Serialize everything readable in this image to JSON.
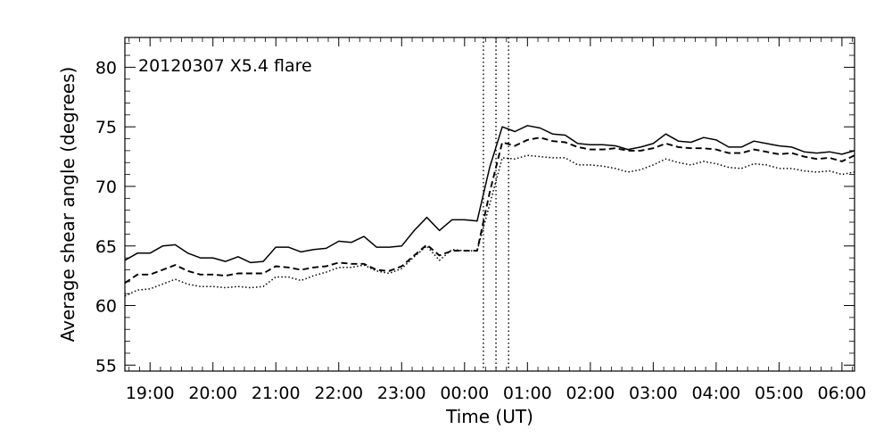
{
  "chart_data": {
    "type": "line",
    "annotation": "20120307 X5.4 flare",
    "xlabel": "Time (UT)",
    "ylabel": "Average shear angle (degrees)",
    "x_tick_labels": [
      "19:00",
      "20:00",
      "21:00",
      "22:00",
      "23:00",
      "00:00",
      "01:00",
      "02:00",
      "03:00",
      "04:00",
      "05:00",
      "06:00"
    ],
    "x_tick_values": [
      19,
      20,
      21,
      22,
      23,
      24,
      25,
      26,
      27,
      28,
      29,
      30
    ],
    "y_tick_labels": [
      "55",
      "60",
      "65",
      "70",
      "75",
      "80"
    ],
    "y_tick_values": [
      55,
      60,
      65,
      70,
      75,
      80
    ],
    "xlim": [
      18.6,
      30.2
    ],
    "ylim": [
      54.5,
      82.5
    ],
    "x_unit": "hours UT (values above 24 fall on 8 March)",
    "grid": false,
    "vertical_markers": [
      24.3,
      24.5,
      24.7
    ],
    "series": [
      {
        "style": "solid",
        "x": [
          18.6,
          18.8,
          19.0,
          19.2,
          19.4,
          19.6,
          19.8,
          20.0,
          20.2,
          20.4,
          20.6,
          20.8,
          21.0,
          21.2,
          21.4,
          21.6,
          21.8,
          22.0,
          22.2,
          22.4,
          22.6,
          22.8,
          23.0,
          23.2,
          23.4,
          23.6,
          23.8,
          24.0,
          24.2,
          24.4,
          24.6,
          24.8,
          25.0,
          25.2,
          25.4,
          25.6,
          25.8,
          26.0,
          26.2,
          26.4,
          26.6,
          26.8,
          27.0,
          27.2,
          27.4,
          27.6,
          27.8,
          28.0,
          28.2,
          28.4,
          28.6,
          28.8,
          29.0,
          29.2,
          29.4,
          29.6,
          29.8,
          30.0,
          30.2
        ],
        "y": [
          63.8,
          64.4,
          64.4,
          65.0,
          65.1,
          64.4,
          64.0,
          64.0,
          63.7,
          64.1,
          63.6,
          63.7,
          64.9,
          64.9,
          64.5,
          64.7,
          64.8,
          65.4,
          65.3,
          65.8,
          64.9,
          64.9,
          65.0,
          66.3,
          67.4,
          66.3,
          67.2,
          67.2,
          67.1,
          71.6,
          75.0,
          74.6,
          75.1,
          74.9,
          74.4,
          74.3,
          73.6,
          73.5,
          73.5,
          73.4,
          73.1,
          73.3,
          73.6,
          74.4,
          73.8,
          73.7,
          74.1,
          73.9,
          73.3,
          73.3,
          73.8,
          73.6,
          73.4,
          73.3,
          72.9,
          72.8,
          72.9,
          72.7,
          73.0
        ]
      },
      {
        "style": "dashed",
        "x": [
          18.6,
          18.8,
          19.0,
          19.2,
          19.4,
          19.6,
          19.8,
          20.0,
          20.2,
          20.4,
          20.6,
          20.8,
          21.0,
          21.2,
          21.4,
          21.6,
          21.8,
          22.0,
          22.2,
          22.4,
          22.6,
          22.8,
          23.0,
          23.2,
          23.4,
          23.6,
          23.8,
          24.0,
          24.2,
          24.4,
          24.6,
          24.8,
          25.0,
          25.2,
          25.4,
          25.6,
          25.8,
          26.0,
          26.2,
          26.4,
          26.6,
          26.8,
          27.0,
          27.2,
          27.4,
          27.6,
          27.8,
          28.0,
          28.2,
          28.4,
          28.6,
          28.8,
          29.0,
          29.2,
          29.4,
          29.6,
          29.8,
          30.0,
          30.2
        ],
        "y": [
          61.9,
          62.6,
          62.6,
          63.0,
          63.4,
          62.9,
          62.6,
          62.6,
          62.5,
          62.7,
          62.7,
          62.7,
          63.3,
          63.2,
          63.0,
          63.2,
          63.3,
          63.6,
          63.5,
          63.5,
          63.0,
          62.9,
          63.3,
          64.2,
          65.1,
          64.2,
          64.6,
          64.6,
          64.6,
          69.5,
          73.7,
          73.4,
          73.9,
          74.1,
          73.8,
          73.7,
          73.3,
          73.1,
          73.1,
          73.2,
          73.0,
          73.0,
          73.2,
          73.6,
          73.3,
          73.2,
          73.2,
          73.1,
          72.8,
          72.8,
          73.1,
          72.9,
          72.7,
          72.8,
          72.5,
          72.3,
          72.4,
          72.1,
          72.6
        ]
      },
      {
        "style": "dotted",
        "x": [
          18.6,
          18.8,
          19.0,
          19.2,
          19.4,
          19.6,
          19.8,
          20.0,
          20.2,
          20.4,
          20.6,
          20.8,
          21.0,
          21.2,
          21.4,
          21.6,
          21.8,
          22.0,
          22.2,
          22.4,
          22.6,
          22.8,
          23.0,
          23.2,
          23.4,
          23.6,
          23.8,
          24.0,
          24.2,
          24.4,
          24.6,
          24.8,
          25.0,
          25.2,
          25.4,
          25.6,
          25.8,
          26.0,
          26.2,
          26.4,
          26.6,
          26.8,
          27.0,
          27.2,
          27.4,
          27.6,
          27.8,
          28.0,
          28.2,
          28.4,
          28.6,
          28.8,
          29.0,
          29.2,
          29.4,
          29.6,
          29.8,
          30.0,
          30.2
        ],
        "y": [
          60.8,
          61.3,
          61.4,
          61.8,
          62.2,
          61.8,
          61.6,
          61.6,
          61.5,
          61.6,
          61.5,
          61.6,
          62.4,
          62.4,
          62.1,
          62.5,
          62.8,
          63.2,
          63.2,
          63.4,
          62.9,
          62.7,
          63.1,
          64.1,
          65.0,
          63.8,
          64.7,
          64.6,
          64.6,
          68.5,
          72.4,
          72.3,
          72.6,
          72.5,
          72.4,
          72.4,
          71.8,
          71.8,
          71.7,
          71.5,
          71.2,
          71.4,
          71.8,
          72.3,
          72.0,
          71.8,
          72.1,
          71.9,
          71.6,
          71.5,
          71.9,
          71.8,
          71.5,
          71.5,
          71.3,
          71.2,
          71.3,
          71.0,
          71.2
        ]
      }
    ]
  }
}
